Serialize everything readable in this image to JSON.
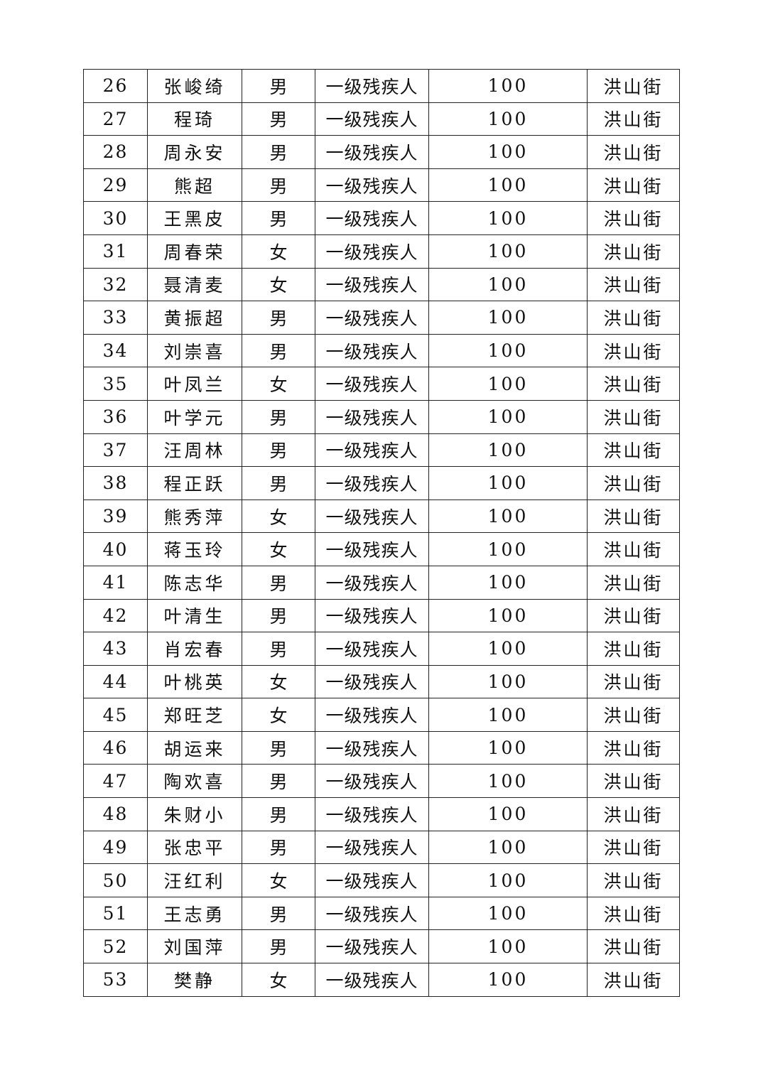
{
  "rows": [
    {
      "no": "26",
      "name": "张峻绮",
      "gender": "男",
      "category": "一级残疾人",
      "amount": "100",
      "location": "洪山街"
    },
    {
      "no": "27",
      "name": "程琦",
      "gender": "男",
      "category": "一级残疾人",
      "amount": "100",
      "location": "洪山街"
    },
    {
      "no": "28",
      "name": "周永安",
      "gender": "男",
      "category": "一级残疾人",
      "amount": "100",
      "location": "洪山街"
    },
    {
      "no": "29",
      "name": "熊超",
      "gender": "男",
      "category": "一级残疾人",
      "amount": "100",
      "location": "洪山街"
    },
    {
      "no": "30",
      "name": "王黑皮",
      "gender": "男",
      "category": "一级残疾人",
      "amount": "100",
      "location": "洪山街"
    },
    {
      "no": "31",
      "name": "周春荣",
      "gender": "女",
      "category": "一级残疾人",
      "amount": "100",
      "location": "洪山街"
    },
    {
      "no": "32",
      "name": "聂清麦",
      "gender": "女",
      "category": "一级残疾人",
      "amount": "100",
      "location": "洪山街"
    },
    {
      "no": "33",
      "name": "黄振超",
      "gender": "男",
      "category": "一级残疾人",
      "amount": "100",
      "location": "洪山街"
    },
    {
      "no": "34",
      "name": "刘崇喜",
      "gender": "男",
      "category": "一级残疾人",
      "amount": "100",
      "location": "洪山街"
    },
    {
      "no": "35",
      "name": "叶凤兰",
      "gender": "女",
      "category": "一级残疾人",
      "amount": "100",
      "location": "洪山街"
    },
    {
      "no": "36",
      "name": "叶学元",
      "gender": "男",
      "category": "一级残疾人",
      "amount": "100",
      "location": "洪山街"
    },
    {
      "no": "37",
      "name": "汪周林",
      "gender": "男",
      "category": "一级残疾人",
      "amount": "100",
      "location": "洪山街"
    },
    {
      "no": "38",
      "name": "程正跃",
      "gender": "男",
      "category": "一级残疾人",
      "amount": "100",
      "location": "洪山街"
    },
    {
      "no": "39",
      "name": "熊秀萍",
      "gender": "女",
      "category": "一级残疾人",
      "amount": "100",
      "location": "洪山街"
    },
    {
      "no": "40",
      "name": "蒋玉玲",
      "gender": "女",
      "category": "一级残疾人",
      "amount": "100",
      "location": "洪山街"
    },
    {
      "no": "41",
      "name": "陈志华",
      "gender": "男",
      "category": "一级残疾人",
      "amount": "100",
      "location": "洪山街"
    },
    {
      "no": "42",
      "name": "叶清生",
      "gender": "男",
      "category": "一级残疾人",
      "amount": "100",
      "location": "洪山街"
    },
    {
      "no": "43",
      "name": "肖宏春",
      "gender": "男",
      "category": "一级残疾人",
      "amount": "100",
      "location": "洪山街"
    },
    {
      "no": "44",
      "name": "叶桃英",
      "gender": "女",
      "category": "一级残疾人",
      "amount": "100",
      "location": "洪山街"
    },
    {
      "no": "45",
      "name": "郑旺芝",
      "gender": "女",
      "category": "一级残疾人",
      "amount": "100",
      "location": "洪山街"
    },
    {
      "no": "46",
      "name": "胡运来",
      "gender": "男",
      "category": "一级残疾人",
      "amount": "100",
      "location": "洪山街"
    },
    {
      "no": "47",
      "name": "陶欢喜",
      "gender": "男",
      "category": "一级残疾人",
      "amount": "100",
      "location": "洪山街"
    },
    {
      "no": "48",
      "name": "朱财小",
      "gender": "男",
      "category": "一级残疾人",
      "amount": "100",
      "location": "洪山街"
    },
    {
      "no": "49",
      "name": "张忠平",
      "gender": "男",
      "category": "一级残疾人",
      "amount": "100",
      "location": "洪山街"
    },
    {
      "no": "50",
      "name": "汪红利",
      "gender": "女",
      "category": "一级残疾人",
      "amount": "100",
      "location": "洪山街"
    },
    {
      "no": "51",
      "name": "王志勇",
      "gender": "男",
      "category": "一级残疾人",
      "amount": "100",
      "location": "洪山街"
    },
    {
      "no": "52",
      "name": "刘国萍",
      "gender": "男",
      "category": "一级残疾人",
      "amount": "100",
      "location": "洪山街"
    },
    {
      "no": "53",
      "name": "樊静",
      "gender": "女",
      "category": "一级残疾人",
      "amount": "100",
      "location": "洪山街"
    }
  ]
}
